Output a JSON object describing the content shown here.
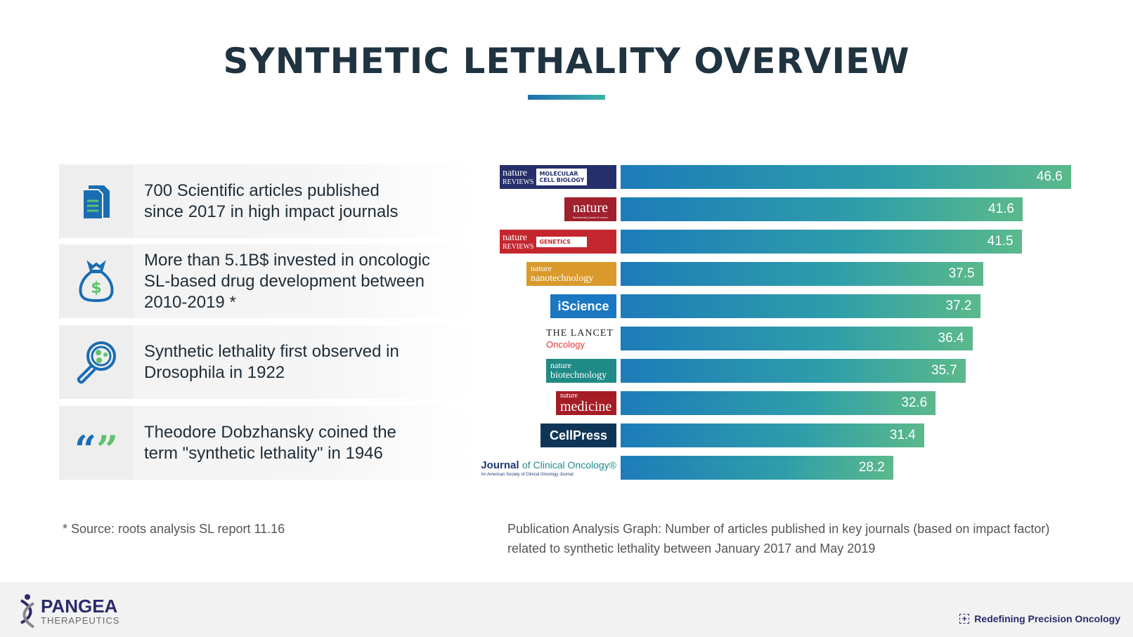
{
  "title": "SYNTHETIC LETHALITY OVERVIEW",
  "facts": [
    {
      "icon": "document-icon",
      "text": "700 Scientific articles published since 2017 in high impact journals"
    },
    {
      "icon": "money-bag-icon",
      "text": "More than 5.1B$ invested in oncologic SL-based drug development between 2010-2019 *"
    },
    {
      "icon": "magnifier-icon",
      "text": "Synthetic lethality first observed in Drosophila in 1922"
    },
    {
      "icon": "quote-icon",
      "text": "Theodore Dobzhansky coined the term \"synthetic lethality\" in 1946"
    }
  ],
  "chart_data": {
    "type": "bar",
    "orientation": "horizontal",
    "categories": [
      "Nature Reviews Molecular Cell Biology",
      "Nature",
      "Nature Reviews Genetics",
      "Nature Nanotechnology",
      "iScience",
      "The Lancet Oncology",
      "Nature Biotechnology",
      "Nature Medicine",
      "CellPress",
      "Journal of Clinical Oncology"
    ],
    "values": [
      46.6,
      41.6,
      41.5,
      37.5,
      37.2,
      36.4,
      35.7,
      32.6,
      31.4,
      28.2
    ],
    "logo_text": [
      [
        "nature",
        "REVIEWS",
        "MOLECULAR CELL BIOLOGY"
      ],
      [
        "nature",
        "International journal of science"
      ],
      [
        "nature",
        "REVIEWS",
        "GENETICS"
      ],
      [
        "nature",
        "nanotechnology"
      ],
      [
        "iScience"
      ],
      [
        "THE LANCET",
        "Oncology"
      ],
      [
        "nature",
        "biotechnology"
      ],
      [
        "nature",
        "medicine"
      ],
      [
        "CellPress"
      ],
      [
        "Journal",
        "of Clinical Oncology®",
        "An American Society of Clinical Oncology Journal"
      ]
    ],
    "colors": {
      "bar_start": "#1d7cb9",
      "bar_end": "#5bb98b"
    }
  },
  "source_note": "* Source: roots analysis SL report 11.16",
  "caption_line1": "Publication Analysis Graph: Number of articles published in key journals (based on impact factor)",
  "caption_line2": "related to synthetic lethality between January 2017 and May 2019",
  "footer": {
    "brand": "PANGEA",
    "brand_sub": "THERAPEUTICS",
    "tagline": "Redefining Precision Oncology"
  }
}
